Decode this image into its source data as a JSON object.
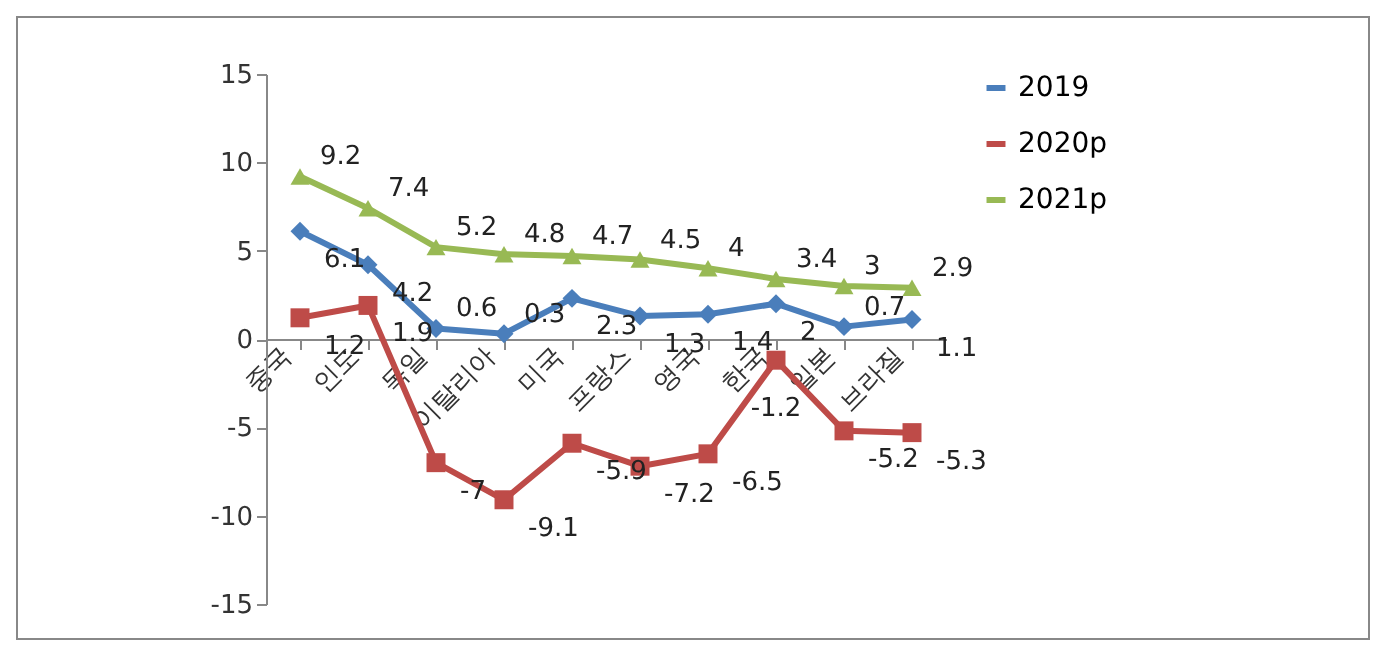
{
  "chart_data": {
    "type": "line",
    "categories": [
      "중국",
      "인도",
      "독일",
      "이탈리아",
      "미국",
      "프랑스",
      "영국",
      "한국",
      "일본",
      "브라질"
    ],
    "series": [
      {
        "name": "2019",
        "color": "#4a7ebb",
        "marker": "diamond",
        "values": [
          6.1,
          4.2,
          0.6,
          0.3,
          2.3,
          1.3,
          1.4,
          2,
          0.7,
          1.1
        ]
      },
      {
        "name": "2020p",
        "color": "#be4b48",
        "marker": "square",
        "values": [
          1.2,
          1.9,
          -7,
          -9.1,
          -5.9,
          -7.2,
          -6.5,
          -1.2,
          -5.2,
          -5.3
        ]
      },
      {
        "name": "2021p",
        "color": "#98b954",
        "marker": "triangle",
        "values": [
          9.2,
          7.4,
          5.2,
          4.8,
          4.7,
          4.5,
          4,
          3.4,
          3,
          2.9
        ]
      }
    ],
    "ylim": [
      -15,
      15
    ],
    "yticks": [
      -15,
      -10,
      -5,
      0,
      5,
      10,
      15
    ],
    "grid": false,
    "legend": "right",
    "data_labels": true
  }
}
